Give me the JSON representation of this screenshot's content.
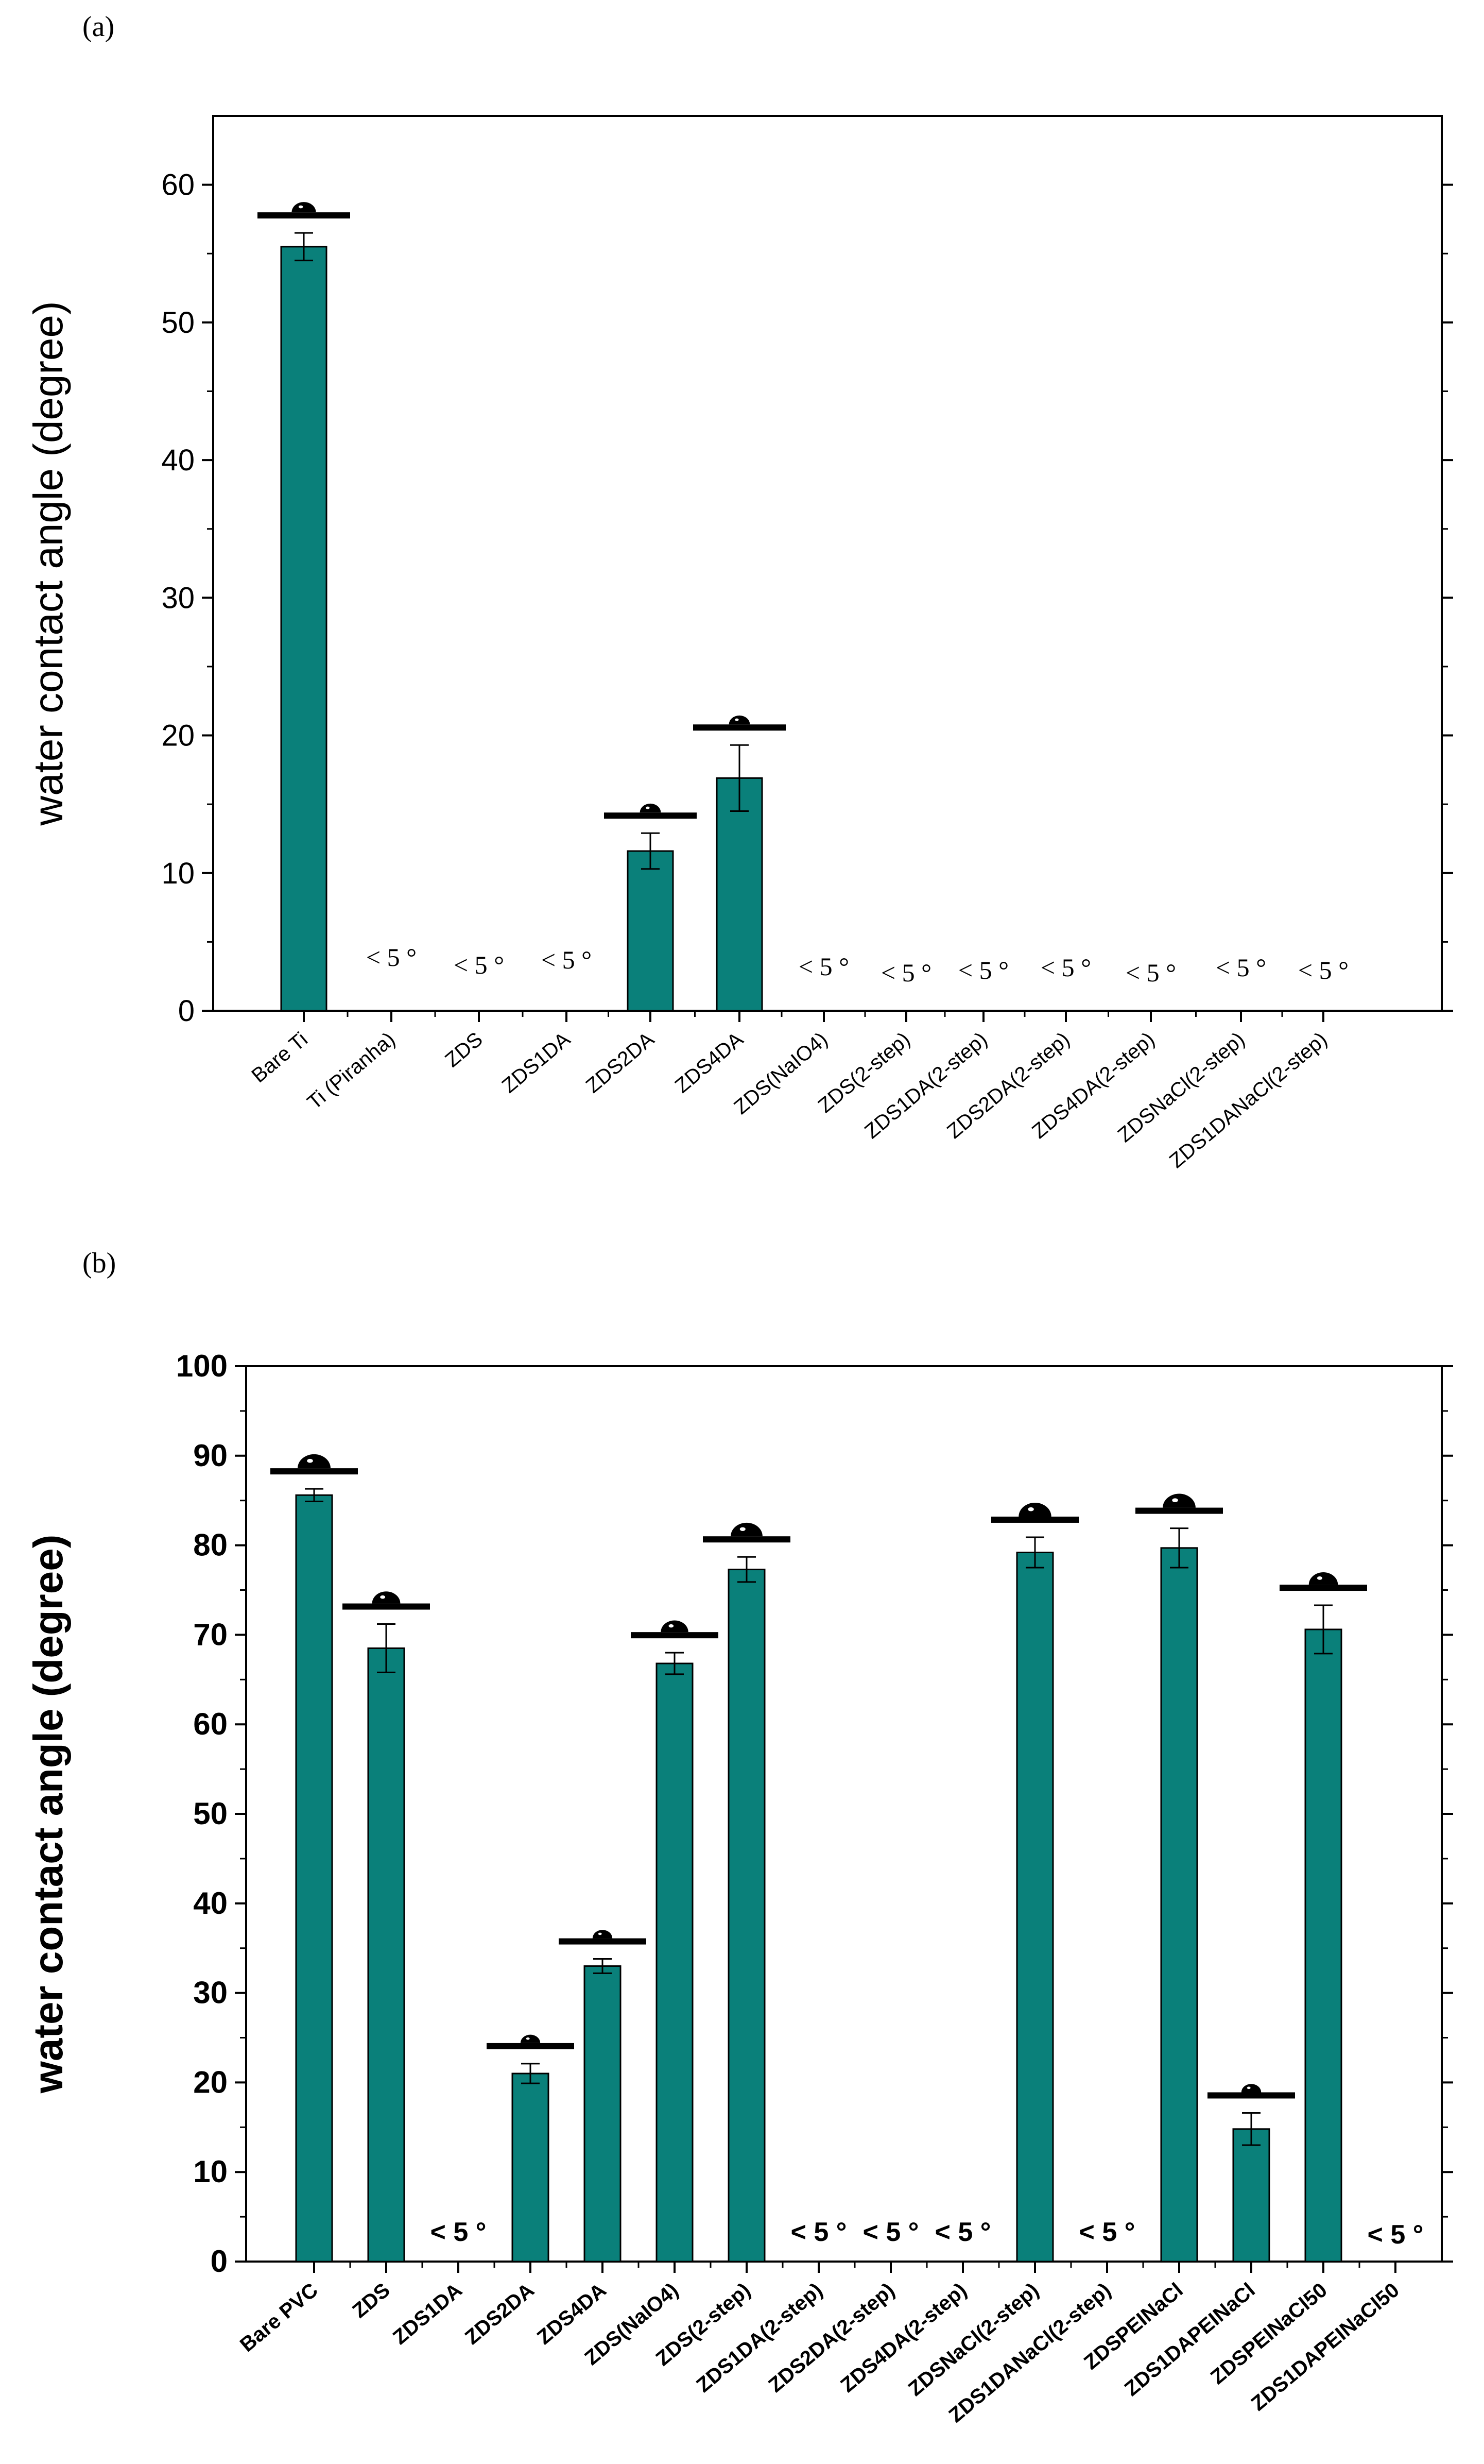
{
  "chart_data": [
    {
      "panel_label": "(a)",
      "type": "bar",
      "ylabel": "water contact angle (degree)",
      "ylim": [
        0,
        65
      ],
      "yticks": [
        0,
        10,
        20,
        30,
        40,
        50,
        60
      ],
      "categories": [
        "Bare Ti",
        "Ti (Piranha)",
        "ZDS",
        "ZDS1DA",
        "ZDS2DA",
        "ZDS4DA",
        "ZDS(NaIO4)",
        "ZDS(2-step)",
        "ZDS1DA(2-step)",
        "ZDS2DA(2-step)",
        "ZDS4DA(2-step)",
        "ZDSNaCl(2-step)",
        "ZDS1DANaCl(2-step)"
      ],
      "values": [
        55.5,
        null,
        null,
        null,
        11.6,
        16.9,
        null,
        null,
        null,
        null,
        null,
        null,
        null
      ],
      "errors": [
        1.0,
        null,
        null,
        null,
        1.3,
        2.4,
        null,
        null,
        null,
        null,
        null,
        null,
        null
      ],
      "below_detection_label": "< 5 °",
      "below_detection_flags": [
        false,
        true,
        true,
        true,
        false,
        false,
        true,
        true,
        true,
        true,
        true,
        true,
        true
      ],
      "droplet_markers": [
        true,
        false,
        false,
        false,
        true,
        true,
        false,
        false,
        false,
        false,
        false,
        false,
        false
      ],
      "bar_color": "#0a807a"
    },
    {
      "panel_label": "(b)",
      "type": "bar",
      "ylabel": "water contact angle (degree)",
      "ylim": [
        0,
        100
      ],
      "yticks": [
        0,
        10,
        20,
        30,
        40,
        50,
        60,
        70,
        80,
        90,
        100
      ],
      "categories": [
        "Bare PVC",
        "ZDS",
        "ZDS1DA",
        "ZDS2DA",
        "ZDS4DA",
        "ZDS(NaIO4)",
        "ZDS(2-step)",
        "ZDS1DA(2-step)",
        "ZDS2DA(2-step)",
        "ZDS4DA(2-step)",
        "ZDSNaCl(2-step)",
        "ZDS1DANaCl(2-step)",
        "ZDSPEINaCl",
        "ZDS1DAPEINaCl",
        "ZDSPEINaCl50",
        "ZDS1DAPEINaCl50"
      ],
      "values": [
        85.6,
        68.5,
        null,
        21.0,
        33.0,
        66.8,
        77.3,
        null,
        null,
        null,
        79.2,
        null,
        79.7,
        14.8,
        70.6,
        null
      ],
      "errors": [
        0.7,
        2.7,
        null,
        1.1,
        0.8,
        1.2,
        1.4,
        null,
        null,
        null,
        1.7,
        null,
        2.2,
        1.8,
        2.7,
        null
      ],
      "below_detection_label": "< 5 °",
      "below_detection_flags": [
        false,
        false,
        true,
        false,
        false,
        false,
        false,
        true,
        true,
        true,
        false,
        true,
        false,
        false,
        false,
        true
      ],
      "droplet_markers": [
        true,
        true,
        false,
        true,
        true,
        true,
        true,
        false,
        false,
        false,
        true,
        false,
        true,
        true,
        true,
        false
      ],
      "bar_color": "#0a807a"
    }
  ]
}
